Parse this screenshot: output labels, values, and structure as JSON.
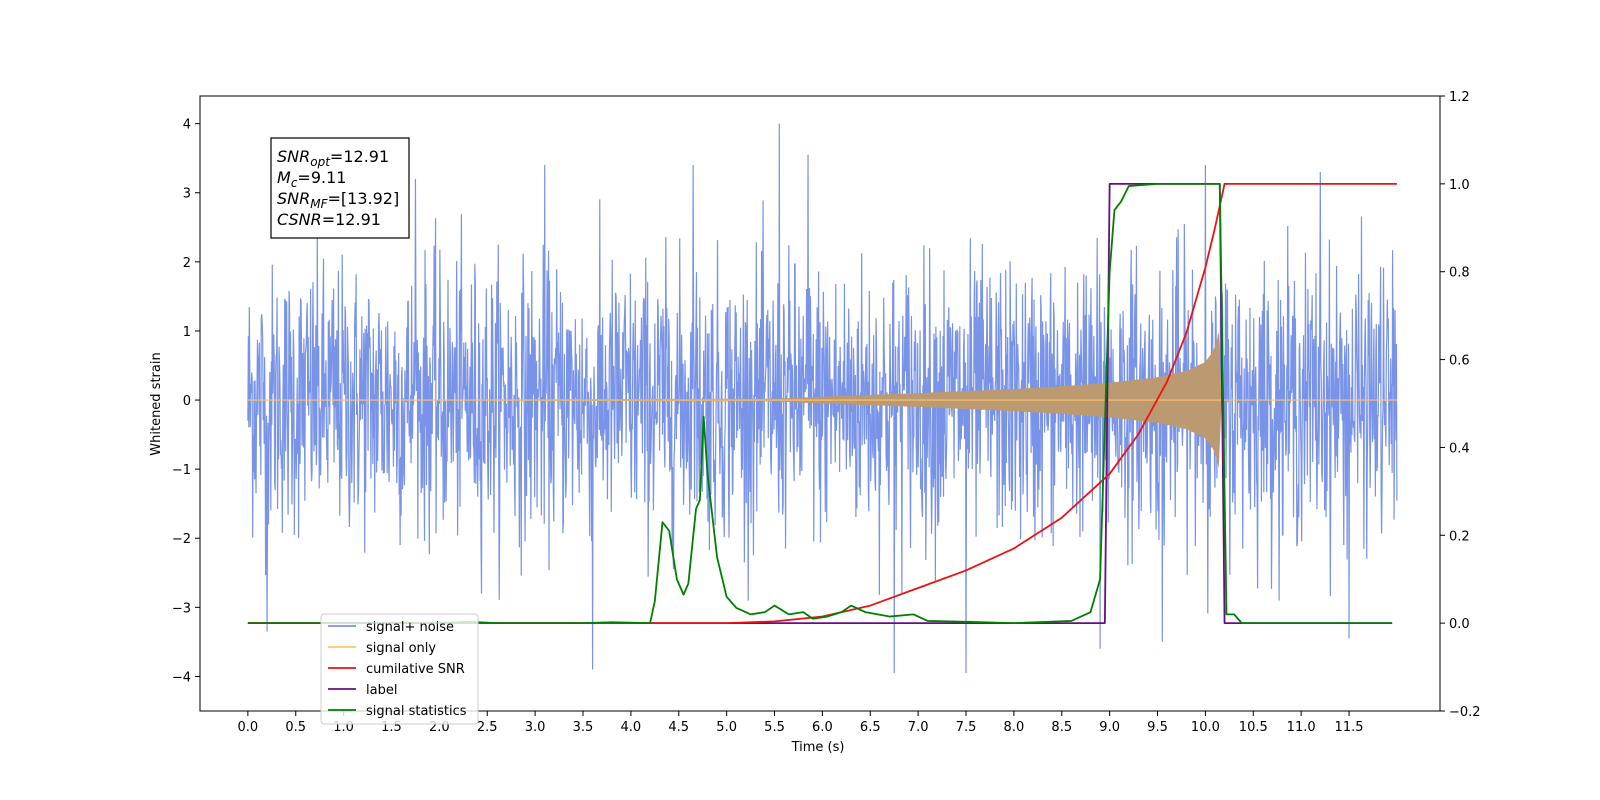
{
  "chart_data": {
    "type": "line",
    "xlabel": "Time (s)",
    "ylabel": "Whitened strain",
    "xlim": [
      -0.5,
      12.45
    ],
    "ylim": [
      -4.5,
      4.4
    ],
    "y2lim": [
      -0.2,
      1.2
    ],
    "x_ticks": [
      0.0,
      0.5,
      1.0,
      1.5,
      2.0,
      2.5,
      3.0,
      3.5,
      4.0,
      4.5,
      5.0,
      5.5,
      6.0,
      6.5,
      7.0,
      7.5,
      8.0,
      8.5,
      9.0,
      9.5,
      10.0,
      10.5,
      11.0,
      11.5
    ],
    "x_tick_labels": [
      "0.0",
      "0.5",
      "1.0",
      "1.5",
      "2.0",
      "2.5",
      "3.0",
      "3.5",
      "4.0",
      "4.5",
      "5.0",
      "5.5",
      "6.0",
      "6.5",
      "7.0",
      "7.5",
      "8.0",
      "8.5",
      "9.0",
      "9.5",
      "10.0",
      "10.5",
      "11.0",
      "11.5"
    ],
    "y_ticks": [
      4,
      3,
      2,
      1,
      0,
      -1,
      -2,
      -3,
      -4
    ],
    "y_tick_labels": [
      "4",
      "3",
      "2",
      "1",
      "0",
      "−1",
      "−2",
      "−3",
      "−4"
    ],
    "y2_ticks": [
      1.2,
      1.0,
      0.8,
      0.6,
      0.4,
      0.2,
      0.0,
      -0.2
    ],
    "y2_tick_labels": [
      "1.2",
      "1.0",
      "0.8",
      "0.6",
      "0.4",
      "0.2",
      "0.0",
      "−0.2"
    ],
    "legend_position": "bottom-left",
    "grid": false,
    "series": [
      {
        "name": "signal+ noise",
        "axis": "left",
        "color": "#7893e8",
        "x_range": [
          0.0,
          12.0
        ],
        "typical_amplitude": 2.3,
        "peaks": [
          {
            "x": 0.2,
            "y": -3.35
          },
          {
            "x": 1.75,
            "y": 3.2
          },
          {
            "x": 3.1,
            "y": 3.4
          },
          {
            "x": 3.6,
            "y": -3.9
          },
          {
            "x": 4.65,
            "y": 3.4
          },
          {
            "x": 5.55,
            "y": 4.0
          },
          {
            "x": 5.85,
            "y": 3.55
          },
          {
            "x": 6.75,
            "y": -3.95
          },
          {
            "x": 7.5,
            "y": -3.95
          },
          {
            "x": 8.9,
            "y": -3.6
          },
          {
            "x": 9.55,
            "y": -3.5
          },
          {
            "x": 10.0,
            "y": 3.4
          },
          {
            "x": 11.2,
            "y": 3.3
          },
          {
            "x": 11.5,
            "y": -3.45
          }
        ]
      },
      {
        "name": "signal only",
        "axis": "left",
        "color": "#ffc46b",
        "fill": "#bb9a72",
        "x_range": [
          0.0,
          12.0
        ],
        "envelope": [
          {
            "x": 0.0,
            "y": 0.0
          },
          {
            "x": 5.5,
            "y": 0.02
          },
          {
            "x": 6.0,
            "y": 0.05
          },
          {
            "x": 7.0,
            "y": 0.1
          },
          {
            "x": 8.0,
            "y": 0.16
          },
          {
            "x": 8.5,
            "y": 0.2
          },
          {
            "x": 9.0,
            "y": 0.25
          },
          {
            "x": 9.5,
            "y": 0.33
          },
          {
            "x": 9.8,
            "y": 0.42
          },
          {
            "x": 10.0,
            "y": 0.55
          },
          {
            "x": 10.1,
            "y": 0.75
          },
          {
            "x": 10.15,
            "y": 1.05
          },
          {
            "x": 10.16,
            "y": 0.0
          },
          {
            "x": 12.0,
            "y": 0.0
          }
        ]
      },
      {
        "name": "cumilative SNR",
        "axis": "right",
        "color": "#ee1111",
        "points": [
          {
            "x": 0.0,
            "y": 0.0
          },
          {
            "x": 5.0,
            "y": 0.0
          },
          {
            "x": 5.5,
            "y": 0.004
          },
          {
            "x": 6.0,
            "y": 0.015
          },
          {
            "x": 6.5,
            "y": 0.04
          },
          {
            "x": 7.0,
            "y": 0.08
          },
          {
            "x": 7.5,
            "y": 0.12
          },
          {
            "x": 8.0,
            "y": 0.17
          },
          {
            "x": 8.5,
            "y": 0.24
          },
          {
            "x": 9.0,
            "y": 0.34
          },
          {
            "x": 9.3,
            "y": 0.43
          },
          {
            "x": 9.6,
            "y": 0.55
          },
          {
            "x": 9.8,
            "y": 0.66
          },
          {
            "x": 10.0,
            "y": 0.81
          },
          {
            "x": 10.1,
            "y": 0.9
          },
          {
            "x": 10.15,
            "y": 0.95
          },
          {
            "x": 10.2,
            "y": 1.0
          },
          {
            "x": 12.0,
            "y": 1.0
          }
        ]
      },
      {
        "name": "label",
        "axis": "right",
        "color": "#6a0d83",
        "points": [
          {
            "x": 0.0,
            "y": 0.0
          },
          {
            "x": 8.95,
            "y": 0.0
          },
          {
            "x": 9.0,
            "y": 1.0
          },
          {
            "x": 10.15,
            "y": 1.0
          },
          {
            "x": 10.2,
            "y": 0.0
          },
          {
            "x": 11.95,
            "y": 0.0
          }
        ]
      },
      {
        "name": "signal statistics",
        "axis": "right",
        "color": "#008000",
        "points": [
          {
            "x": 0.0,
            "y": 0.0
          },
          {
            "x": 2.0,
            "y": 0.0
          },
          {
            "x": 2.3,
            "y": 0.003
          },
          {
            "x": 2.6,
            "y": 0.0
          },
          {
            "x": 3.5,
            "y": 0.0
          },
          {
            "x": 3.8,
            "y": 0.002
          },
          {
            "x": 4.2,
            "y": 0.0
          },
          {
            "x": 4.25,
            "y": 0.05
          },
          {
            "x": 4.33,
            "y": 0.23
          },
          {
            "x": 4.4,
            "y": 0.21
          },
          {
            "x": 4.48,
            "y": 0.1
          },
          {
            "x": 4.55,
            "y": 0.065
          },
          {
            "x": 4.6,
            "y": 0.09
          },
          {
            "x": 4.68,
            "y": 0.26
          },
          {
            "x": 4.72,
            "y": 0.28
          },
          {
            "x": 4.76,
            "y": 0.47
          },
          {
            "x": 4.8,
            "y": 0.34
          },
          {
            "x": 4.9,
            "y": 0.15
          },
          {
            "x": 5.0,
            "y": 0.06
          },
          {
            "x": 5.1,
            "y": 0.035
          },
          {
            "x": 5.25,
            "y": 0.02
          },
          {
            "x": 5.4,
            "y": 0.025
          },
          {
            "x": 5.5,
            "y": 0.04
          },
          {
            "x": 5.65,
            "y": 0.02
          },
          {
            "x": 5.8,
            "y": 0.025
          },
          {
            "x": 5.9,
            "y": 0.01
          },
          {
            "x": 6.05,
            "y": 0.015
          },
          {
            "x": 6.2,
            "y": 0.025
          },
          {
            "x": 6.3,
            "y": 0.04
          },
          {
            "x": 6.45,
            "y": 0.025
          },
          {
            "x": 6.7,
            "y": 0.015
          },
          {
            "x": 6.95,
            "y": 0.02
          },
          {
            "x": 7.1,
            "y": 0.005
          },
          {
            "x": 7.5,
            "y": 0.003
          },
          {
            "x": 8.0,
            "y": 0.0
          },
          {
            "x": 8.6,
            "y": 0.005
          },
          {
            "x": 8.8,
            "y": 0.025
          },
          {
            "x": 8.9,
            "y": 0.1
          },
          {
            "x": 9.0,
            "y": 0.8
          },
          {
            "x": 9.05,
            "y": 0.94
          },
          {
            "x": 9.12,
            "y": 0.96
          },
          {
            "x": 9.2,
            "y": 0.995
          },
          {
            "x": 9.5,
            "y": 1.0
          },
          {
            "x": 10.15,
            "y": 1.0
          },
          {
            "x": 10.22,
            "y": 0.02
          },
          {
            "x": 10.3,
            "y": 0.02
          },
          {
            "x": 10.38,
            "y": 0.0
          },
          {
            "x": 11.95,
            "y": 0.0
          }
        ]
      }
    ],
    "annotation": {
      "lines": [
        {
          "sym": "SNR",
          "sub": "opt",
          "text": "=12.91"
        },
        {
          "sym": "M",
          "sub": "c",
          "text": "=9.11"
        },
        {
          "sym": "SNR",
          "sub": "MF",
          "text": "=[13.92]"
        },
        {
          "sym": "CSNR",
          "sub": "",
          "text": "=12.91"
        }
      ]
    },
    "legend_entries": [
      {
        "name": "signal+ noise",
        "color": "#7893e8"
      },
      {
        "name": "signal only",
        "color": "#ffc46b"
      },
      {
        "name": "cumilative SNR",
        "color": "#ee1111"
      },
      {
        "name": "label",
        "color": "#6a0d83"
      },
      {
        "name": "signal statistics",
        "color": "#008000"
      }
    ]
  }
}
